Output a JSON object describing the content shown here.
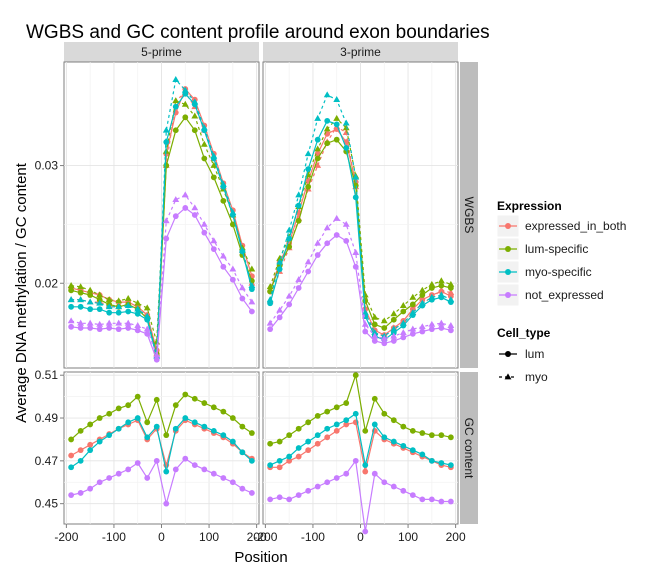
{
  "chart_data": {
    "type": "line",
    "title": "WGBS and GC content profile around exon boundaries",
    "xlabel": "Position",
    "ylabel": "Average DNA methylation / GC content",
    "facets": {
      "columns": [
        "5-prime",
        "3-prime"
      ],
      "rows": [
        "WGBS",
        "GC content"
      ]
    },
    "x_ticks": [
      -200,
      -100,
      0,
      100,
      200
    ],
    "x_tick_labels": [
      "-200",
      "-100",
      "0",
      "100",
      "200"
    ],
    "xlim": [
      -205,
      205
    ],
    "rows": {
      "WGBS": {
        "ylim": [
          0.0128,
          0.0388
        ],
        "ticks": [
          0.02,
          0.03
        ],
        "tick_labels": [
          "0.02",
          "0.03"
        ]
      },
      "GC content": {
        "ylim": [
          0.4405,
          0.5115
        ],
        "ticks": [
          0.45,
          0.47,
          0.49,
          0.51
        ],
        "tick_labels": [
          "0.45",
          "0.47",
          "0.49",
          "0.51"
        ]
      }
    },
    "legend": {
      "expression_title": "Expression",
      "expression": [
        {
          "name": "expressed_in_both",
          "color": "#F8766D"
        },
        {
          "name": "lum-specific",
          "color": "#7CAE00"
        },
        {
          "name": "myo-specific",
          "color": "#00BFC4"
        },
        {
          "name": "not_expressed",
          "color": "#C77CFF"
        }
      ],
      "celltype_title": "Cell_type",
      "celltype": [
        {
          "name": "lum",
          "linetype": "solid",
          "shape": "circle"
        },
        {
          "name": "myo",
          "linetype": "dashed",
          "shape": "triangle"
        }
      ],
      "position": "right"
    },
    "grid": true,
    "x": [
      -190,
      -170,
      -150,
      -130,
      -110,
      -90,
      -70,
      -50,
      -30,
      -10,
      10,
      30,
      50,
      70,
      90,
      110,
      130,
      150,
      170,
      190
    ],
    "series": [
      {
        "name": "expressed_in_both",
        "cell": "lum",
        "facet_col": "5-prime",
        "facet_row": "WGBS",
        "values": [
          0.0196,
          0.0194,
          0.0192,
          0.019,
          0.0186,
          0.0184,
          0.0184,
          0.018,
          0.0173,
          0.0143,
          0.031,
          0.0345,
          0.0365,
          0.0356,
          0.0334,
          0.031,
          0.0285,
          0.0262,
          0.0232,
          0.0206
        ]
      },
      {
        "name": "expressed_in_both",
        "cell": "myo",
        "facet_col": "5-prime",
        "facet_row": "WGBS",
        "values": [
          0.0186,
          0.0186,
          0.0184,
          0.0184,
          0.0181,
          0.018,
          0.0182,
          0.0178,
          0.0171,
          0.014,
          0.03,
          0.0355,
          0.0362,
          0.035,
          0.033,
          0.0306,
          0.0282,
          0.0258,
          0.0228,
          0.02
        ]
      },
      {
        "name": "lum-specific",
        "cell": "lum",
        "facet_col": "5-prime",
        "facet_row": "WGBS",
        "values": [
          0.0194,
          0.0192,
          0.019,
          0.0186,
          0.0182,
          0.018,
          0.0182,
          0.0178,
          0.017,
          0.014,
          0.03,
          0.033,
          0.0341,
          0.033,
          0.0306,
          0.029,
          0.027,
          0.025,
          0.0224,
          0.0202
        ]
      },
      {
        "name": "lum-specific",
        "cell": "myo",
        "facet_col": "5-prime",
        "facet_row": "WGBS",
        "values": [
          0.0198,
          0.0197,
          0.0194,
          0.019,
          0.0186,
          0.0185,
          0.0187,
          0.0183,
          0.0179,
          0.015,
          0.0312,
          0.0355,
          0.0352,
          0.0342,
          0.0318,
          0.03,
          0.028,
          0.0258,
          0.023,
          0.0212
        ]
      },
      {
        "name": "myo-specific",
        "cell": "lum",
        "facet_col": "5-prime",
        "facet_row": "WGBS",
        "values": [
          0.018,
          0.018,
          0.0178,
          0.0178,
          0.0175,
          0.0175,
          0.0176,
          0.0174,
          0.0169,
          0.0137,
          0.032,
          0.035,
          0.0361,
          0.0352,
          0.033,
          0.0306,
          0.0282,
          0.0258,
          0.0227,
          0.0195
        ]
      },
      {
        "name": "myo-specific",
        "cell": "myo",
        "facet_col": "5-prime",
        "facet_row": "WGBS",
        "values": [
          0.0186,
          0.0186,
          0.0184,
          0.0183,
          0.018,
          0.018,
          0.0181,
          0.0178,
          0.0172,
          0.0138,
          0.033,
          0.0373,
          0.0364,
          0.0354,
          0.0332,
          0.0308,
          0.0284,
          0.026,
          0.0228,
          0.0198
        ]
      },
      {
        "name": "not_expressed",
        "cell": "lum",
        "facet_col": "5-prime",
        "facet_row": "WGBS",
        "values": [
          0.0163,
          0.0162,
          0.0162,
          0.0161,
          0.0162,
          0.0161,
          0.0162,
          0.016,
          0.0157,
          0.0135,
          0.0238,
          0.0257,
          0.0264,
          0.0258,
          0.0243,
          0.0229,
          0.0214,
          0.0203,
          0.0187,
          0.0176
        ]
      },
      {
        "name": "not_expressed",
        "cell": "myo",
        "facet_col": "5-prime",
        "facet_row": "WGBS",
        "values": [
          0.0168,
          0.0166,
          0.0166,
          0.0165,
          0.0166,
          0.0166,
          0.0166,
          0.0164,
          0.0161,
          0.0139,
          0.0253,
          0.0271,
          0.0275,
          0.0264,
          0.025,
          0.0236,
          0.0223,
          0.0212,
          0.0196,
          0.0184
        ]
      },
      {
        "name": "expressed_in_both",
        "cell": "lum",
        "facet_col": "3-prime",
        "facet_row": "WGBS",
        "values": [
          0.0193,
          0.0218,
          0.0234,
          0.026,
          0.0287,
          0.031,
          0.0327,
          0.0331,
          0.032,
          0.0286,
          0.0178,
          0.016,
          0.0156,
          0.0162,
          0.0168,
          0.0178,
          0.0186,
          0.019,
          0.0193,
          0.0189
        ]
      },
      {
        "name": "expressed_in_both",
        "cell": "myo",
        "facet_col": "3-prime",
        "facet_row": "WGBS",
        "values": [
          0.0185,
          0.021,
          0.023,
          0.0255,
          0.028,
          0.03,
          0.032,
          0.0333,
          0.0328,
          0.0282,
          0.0172,
          0.0158,
          0.0155,
          0.0162,
          0.0166,
          0.0175,
          0.0183,
          0.0188,
          0.0194,
          0.0192
        ]
      },
      {
        "name": "lum-specific",
        "cell": "lum",
        "facet_col": "3-prime",
        "facet_row": "WGBS",
        "values": [
          0.0193,
          0.0215,
          0.0231,
          0.0253,
          0.0282,
          0.0306,
          0.0319,
          0.0322,
          0.0312,
          0.0283,
          0.0185,
          0.0165,
          0.0162,
          0.0169,
          0.0176,
          0.0182,
          0.019,
          0.0196,
          0.0198,
          0.0196
        ]
      },
      {
        "name": "lum-specific",
        "cell": "myo",
        "facet_col": "3-prime",
        "facet_row": "WGBS",
        "values": [
          0.0197,
          0.0221,
          0.0239,
          0.0265,
          0.0292,
          0.0314,
          0.0331,
          0.034,
          0.0332,
          0.0291,
          0.019,
          0.0171,
          0.0168,
          0.0174,
          0.0181,
          0.0188,
          0.0194,
          0.0199,
          0.0202,
          0.0199
        ]
      },
      {
        "name": "myo-specific",
        "cell": "lum",
        "facet_col": "3-prime",
        "facet_row": "WGBS",
        "values": [
          0.0183,
          0.0212,
          0.0238,
          0.0266,
          0.0297,
          0.0322,
          0.0338,
          0.0335,
          0.0315,
          0.0273,
          0.0172,
          0.0155,
          0.0152,
          0.0158,
          0.0164,
          0.0173,
          0.0181,
          0.0186,
          0.0188,
          0.0184
        ]
      },
      {
        "name": "myo-specific",
        "cell": "myo",
        "facet_col": "3-prime",
        "facet_row": "WGBS",
        "values": [
          0.0186,
          0.0218,
          0.0245,
          0.0275,
          0.031,
          0.034,
          0.036,
          0.0356,
          0.0336,
          0.029,
          0.0175,
          0.0158,
          0.0155,
          0.0161,
          0.0166,
          0.0175,
          0.0183,
          0.0188,
          0.019,
          0.0186
        ]
      },
      {
        "name": "not_expressed",
        "cell": "lum",
        "facet_col": "3-prime",
        "facet_row": "WGBS",
        "values": [
          0.0161,
          0.0171,
          0.0182,
          0.0196,
          0.021,
          0.0224,
          0.0234,
          0.0241,
          0.0236,
          0.0214,
          0.0159,
          0.0151,
          0.0149,
          0.0151,
          0.0154,
          0.0157,
          0.0159,
          0.0161,
          0.0162,
          0.016
        ]
      },
      {
        "name": "not_expressed",
        "cell": "myo",
        "facet_col": "3-prime",
        "facet_row": "WGBS",
        "values": [
          0.0166,
          0.0177,
          0.0189,
          0.0203,
          0.0218,
          0.0234,
          0.0247,
          0.0255,
          0.025,
          0.0226,
          0.0165,
          0.0155,
          0.0153,
          0.0155,
          0.0158,
          0.0161,
          0.0163,
          0.0165,
          0.0166,
          0.0164
        ]
      },
      {
        "name": "expressed_in_both",
        "cell": "lum",
        "facet_col": "5-prime",
        "facet_row": "GC content",
        "values": [
          0.4725,
          0.475,
          0.4775,
          0.48,
          0.4825,
          0.485,
          0.487,
          0.489,
          0.48,
          0.485,
          0.468,
          0.484,
          0.489,
          0.487,
          0.485,
          0.483,
          0.481,
          0.478,
          0.474,
          0.471
        ]
      },
      {
        "name": "lum-specific",
        "cell": "lum",
        "facet_col": "5-prime",
        "facet_row": "GC content",
        "values": [
          0.48,
          0.484,
          0.487,
          0.49,
          0.492,
          0.4945,
          0.496,
          0.5,
          0.488,
          0.4985,
          0.482,
          0.496,
          0.501,
          0.499,
          0.497,
          0.495,
          0.493,
          0.49,
          0.486,
          0.483
        ]
      },
      {
        "name": "myo-specific",
        "cell": "lum",
        "facet_col": "5-prime",
        "facet_row": "GC content",
        "values": [
          0.467,
          0.47,
          0.475,
          0.479,
          0.482,
          0.485,
          0.488,
          0.49,
          0.481,
          0.486,
          0.465,
          0.485,
          0.49,
          0.488,
          0.486,
          0.484,
          0.482,
          0.479,
          0.474,
          0.47
        ]
      },
      {
        "name": "not_expressed",
        "cell": "lum",
        "facet_col": "5-prime",
        "facet_row": "GC content",
        "values": [
          0.454,
          0.455,
          0.457,
          0.46,
          0.462,
          0.464,
          0.466,
          0.469,
          0.462,
          0.47,
          0.45,
          0.466,
          0.471,
          0.468,
          0.466,
          0.464,
          0.462,
          0.46,
          0.457,
          0.455
        ]
      },
      {
        "name": "expressed_in_both",
        "cell": "lum",
        "facet_col": "3-prime",
        "facet_row": "GC content",
        "values": [
          0.467,
          0.467,
          0.47,
          0.472,
          0.475,
          0.478,
          0.481,
          0.484,
          0.487,
          0.488,
          0.465,
          0.484,
          0.48,
          0.478,
          0.476,
          0.474,
          0.472,
          0.47,
          0.468,
          0.467
        ]
      },
      {
        "name": "lum-specific",
        "cell": "lum",
        "facet_col": "3-prime",
        "facet_row": "GC content",
        "values": [
          0.478,
          0.479,
          0.482,
          0.485,
          0.488,
          0.491,
          0.493,
          0.495,
          0.497,
          0.51,
          0.484,
          0.499,
          0.492,
          0.489,
          0.486,
          0.484,
          0.483,
          0.482,
          0.482,
          0.481
        ]
      },
      {
        "name": "myo-specific",
        "cell": "lum",
        "facet_col": "3-prime",
        "facet_row": "GC content",
        "values": [
          0.468,
          0.47,
          0.472,
          0.476,
          0.479,
          0.482,
          0.485,
          0.487,
          0.489,
          0.492,
          0.468,
          0.487,
          0.481,
          0.479,
          0.477,
          0.475,
          0.473,
          0.47,
          0.469,
          0.468
        ]
      },
      {
        "name": "not_expressed",
        "cell": "lum",
        "facet_col": "3-prime",
        "facet_row": "GC content",
        "values": [
          0.452,
          0.453,
          0.452,
          0.454,
          0.456,
          0.458,
          0.46,
          0.462,
          0.464,
          0.47,
          0.437,
          0.464,
          0.46,
          0.458,
          0.456,
          0.454,
          0.452,
          0.452,
          0.451,
          0.451
        ]
      }
    ]
  }
}
